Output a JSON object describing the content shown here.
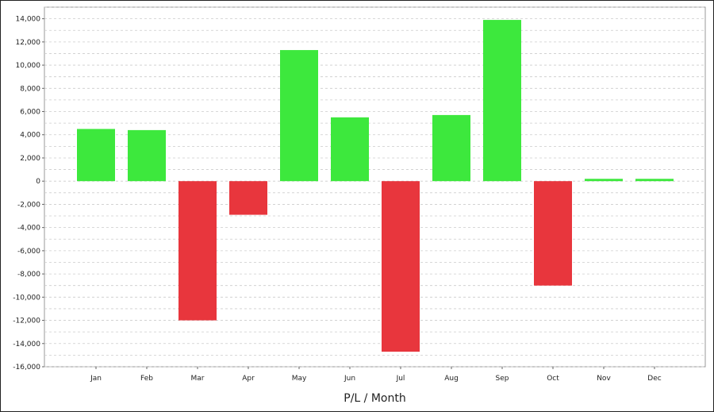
{
  "chart_data": {
    "type": "bar",
    "title": "",
    "xlabel": "P/L / Month",
    "ylabel": "",
    "categories": [
      "Jan",
      "Feb",
      "Mar",
      "Apr",
      "May",
      "Jun",
      "Jul",
      "Aug",
      "Sep",
      "Oct",
      "Nov",
      "Dec"
    ],
    "values": [
      4500,
      4400,
      -12000,
      -2900,
      11300,
      5500,
      -14700,
      5700,
      13900,
      -9000,
      200,
      200
    ],
    "ylim": [
      -16000,
      15000
    ],
    "yticks": [
      14000,
      12000,
      10000,
      8000,
      6000,
      4000,
      2000,
      0,
      -2000,
      -4000,
      -6000,
      -8000,
      -10000,
      -12000,
      -14000,
      -16000
    ],
    "ytick_labels": [
      "14,000",
      "12,000",
      "10,000",
      "8,000",
      "6,000",
      "4,000",
      "2,000",
      "0",
      "-2,000",
      "-4,000",
      "-6,000",
      "-8,000",
      "-10,000",
      "-12,000",
      "-14,000",
      "-16,000"
    ],
    "grid": true,
    "legend": "none",
    "colors": {
      "positive": "#3de83d",
      "negative": "#e8363d",
      "grid": "#cccccc",
      "axis": "#888888"
    }
  }
}
